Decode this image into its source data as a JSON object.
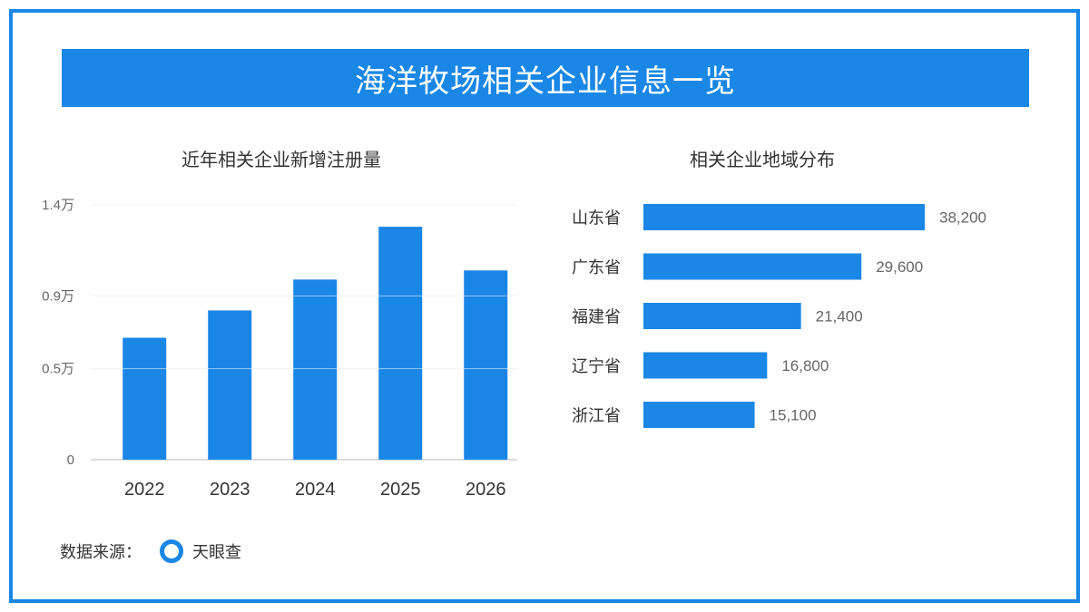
{
  "banner": {
    "title": "海洋牧场相关企业信息一览"
  },
  "source": {
    "label": "数据来源：",
    "name": "天眼查"
  },
  "colors": {
    "accent": "#1a86e6",
    "grid": "#e6e6e6"
  },
  "chart_data": [
    {
      "type": "bar",
      "title": "近年相关企业新增注册量",
      "categories": [
        "2022",
        "2023",
        "2024",
        "2025",
        "2026"
      ],
      "values": [
        6700,
        8200,
        9900,
        12800,
        10400
      ],
      "yticks": [
        {
          "value": 0,
          "label": "0"
        },
        {
          "value": 5000,
          "label": "0.5万"
        },
        {
          "value": 9000,
          "label": "0.9万"
        },
        {
          "value": 14000,
          "label": "1.4万"
        }
      ],
      "ylim": [
        0,
        15000
      ],
      "grid": true
    },
    {
      "type": "bar",
      "orientation": "horizontal",
      "title": "相关企业地域分布",
      "categories": [
        "山东省",
        "广东省",
        "福建省",
        "辽宁省",
        "浙江省"
      ],
      "values": [
        38200,
        29600,
        21400,
        16800,
        15100
      ],
      "value_labels": [
        "38,200",
        "29,600",
        "21,400",
        "16,800",
        "15,100"
      ]
    }
  ]
}
